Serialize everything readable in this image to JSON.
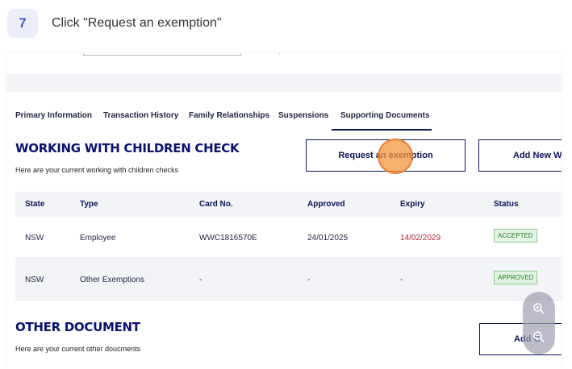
{
  "step": {
    "number": "7",
    "instruction": "Click \"Request an exemption\""
  },
  "tabs": [
    {
      "label": "Primary Information"
    },
    {
      "label": "Transaction History"
    },
    {
      "label": "Family Relationships"
    },
    {
      "label": "Suspensions"
    },
    {
      "label": "Supporting Documents"
    }
  ],
  "active_tab": "Supporting Documents",
  "wwcc": {
    "title": "WORKING WITH CHILDREN CHECK",
    "subtitle": "Here are your current working with children checks",
    "request_button": "Request an exemption",
    "add_button": "Add New W"
  },
  "table": {
    "headers": [
      "State",
      "Type",
      "Card No.",
      "Approved",
      "Expiry",
      "Status"
    ],
    "rows": [
      {
        "state": "NSW",
        "type": "Employee",
        "card": "WWC1816570E",
        "approved": "24/01/2025",
        "expiry": "14/02/2029",
        "status": "ACCEPTED"
      },
      {
        "state": "NSW",
        "type": "Other Exemptions",
        "card": "-",
        "approved": "-",
        "expiry": "-",
        "status": "APPROVED"
      }
    ]
  },
  "other": {
    "title": "OTHER DOCUMENT",
    "subtitle": "Here are your current other doucments",
    "add_button": "Add O"
  },
  "colors": {
    "navy": "#0a1455",
    "title_blue": "#0a1170",
    "expiry_red": "#b3263a",
    "badge_green": "#2b7a2b",
    "cursor_orange": "#f5963c"
  },
  "icons": {
    "zoom_in": "zoom-in-icon",
    "zoom_out": "zoom-out-icon"
  }
}
